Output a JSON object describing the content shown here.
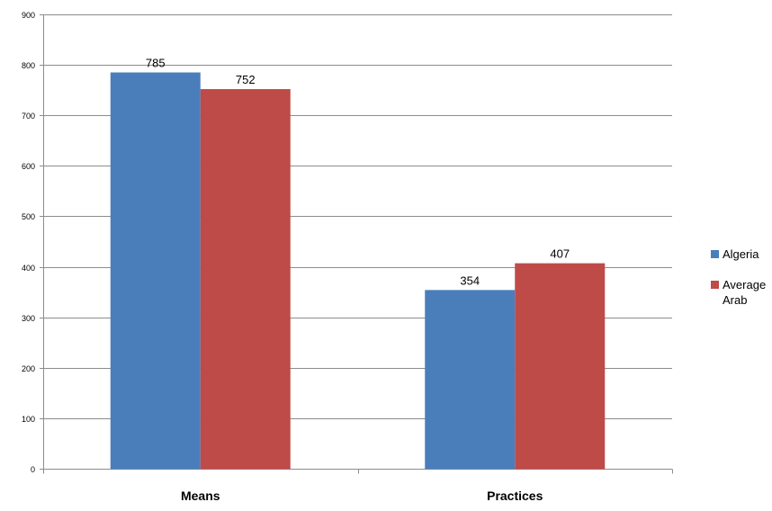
{
  "chart_data": {
    "type": "bar",
    "categories": [
      "Means",
      "Practices"
    ],
    "series": [
      {
        "name": "Algeria",
        "values": [
          785,
          354
        ],
        "color": "#4a7ebb"
      },
      {
        "name": "Average Arab",
        "values": [
          752,
          407
        ],
        "color": "#be4b48"
      }
    ],
    "ylim": [
      0,
      900
    ],
    "yticks": [
      0,
      100,
      200,
      300,
      400,
      500,
      600,
      700,
      800,
      900
    ],
    "grid": true,
    "legend_position": "right",
    "data_labels": true
  }
}
